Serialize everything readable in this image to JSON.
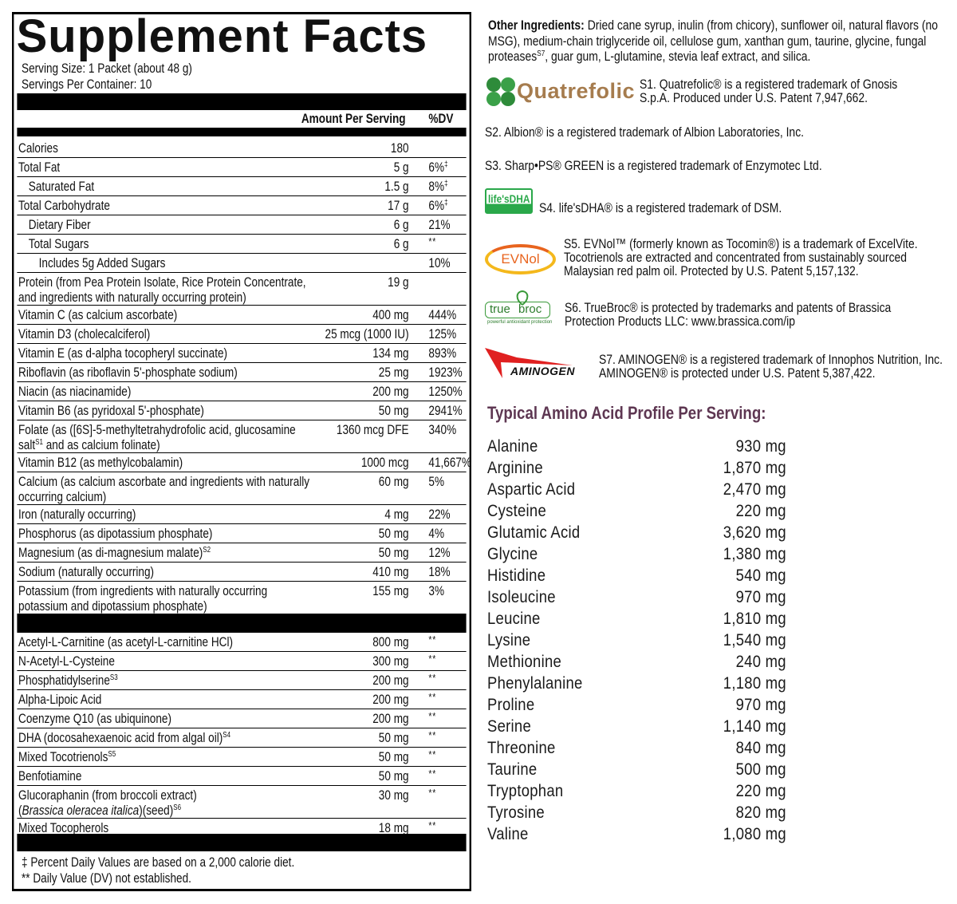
{
  "facts": {
    "title": "Supplement Facts",
    "serving_size": "Serving Size: 1 Packet (about 48 g)",
    "servings_per_container": "Servings Per Container: 10",
    "header_amount": "Amount Per Serving",
    "header_dv": "%DV",
    "rows": [
      {
        "name": "Calories",
        "amount": "180",
        "dv": ""
      },
      {
        "name": "Total Fat",
        "amount": "5 g",
        "dv": "6%",
        "dv_sup": "‡"
      },
      {
        "name": "Saturated Fat",
        "amount": "1.5 g",
        "dv": "8%",
        "dv_sup": "‡",
        "indent": 1
      },
      {
        "name": "Total Carbohydrate",
        "amount": "17 g",
        "dv": "6%",
        "dv_sup": "‡"
      },
      {
        "name": "Dietary Fiber",
        "amount": "6 g",
        "dv": "21%",
        "indent": 1
      },
      {
        "name": "Total Sugars",
        "amount": "6 g",
        "dv": "**",
        "indent": 1
      },
      {
        "name": "Includes 5g Added Sugars",
        "amount": "",
        "dv": "10%",
        "indent": 2
      },
      {
        "name": "Protein (from Pea Protein Isolate, Rice Protein Concentrate,",
        "name2": "and ingredients with naturally occurring protein)",
        "amount": "19 g",
        "dv": ""
      },
      {
        "name": "Vitamin C (as calcium ascorbate)",
        "amount": "400 mg",
        "dv": "444%"
      },
      {
        "name": "Vitamin D3 (cholecalciferol)",
        "amount": "25 mcg (1000 IU)",
        "dv": "125%"
      },
      {
        "name": "Vitamin E (as d-alpha tocopheryl succinate)",
        "amount": "134 mg",
        "dv": "893%"
      },
      {
        "name": "Riboflavin (as riboflavin 5'-phosphate sodium)",
        "amount": "25 mg",
        "dv": "1923%"
      },
      {
        "name": "Niacin (as niacinamide)",
        "amount": "200 mg",
        "dv": "1250%"
      },
      {
        "name": "Vitamin B6 (as pyridoxal 5'-phosphate)",
        "amount": "50 mg",
        "dv": "2941%"
      },
      {
        "name": "Folate (as ([6S]-5-methyltetrahydrofolic acid, glucosamine",
        "name2": "salt",
        "sup2": "S1",
        "name2b": " and as calcium folinate)",
        "amount": "1360 mcg DFE",
        "dv": "340%"
      },
      {
        "name": "Vitamin B12 (as methylcobalamin)",
        "amount": "1000 mcg",
        "dv": "41,667%"
      },
      {
        "name": "Calcium (as calcium ascorbate and ingredients with naturally",
        "name2": "occurring calcium)",
        "amount": "60 mg",
        "dv": "5%"
      },
      {
        "name": "Iron (naturally occurring)",
        "amount": "4 mg",
        "dv": "22%"
      },
      {
        "name": "Phosphorus (as dipotassium phosphate)",
        "amount": "50 mg",
        "dv": "4%"
      },
      {
        "name": "Magnesium (as di-magnesium malate)",
        "sup": "S2",
        "amount": "50 mg",
        "dv": "12%"
      },
      {
        "name": "Sodium (naturally occurring)",
        "amount": "410 mg",
        "dv": "18%"
      },
      {
        "name": "Potassium (from ingredients with naturally occurring",
        "name2": "potassium and dipotassium phosphate)",
        "amount": "155 mg",
        "dv": "3%"
      }
    ],
    "rows2": [
      {
        "name": "Acetyl-L-Carnitine (as acetyl-L-carnitine HCl)",
        "amount": "800 mg",
        "dv": "**"
      },
      {
        "name": "N-Acetyl-L-Cysteine",
        "amount": "300 mg",
        "dv": "**"
      },
      {
        "name": "Phosphatidylserine",
        "sup": "S3",
        "amount": "200 mg",
        "dv": "**"
      },
      {
        "name": "Alpha-Lipoic Acid",
        "amount": "200 mg",
        "dv": "**"
      },
      {
        "name": "Coenzyme Q10 (as ubiquinone)",
        "amount": "200 mg",
        "dv": "**"
      },
      {
        "name": "DHA (docosahexaenoic acid from algal oil)",
        "sup": "S4",
        "amount": "50 mg",
        "dv": "**"
      },
      {
        "name": "Mixed Tocotrienols",
        "sup": "S5",
        "amount": "50 mg",
        "dv": "**"
      },
      {
        "name": "Benfotiamine",
        "amount": "50 mg",
        "dv": "**"
      },
      {
        "name": "Glucoraphanin (from broccoli extract)",
        "name2": "(",
        "name2i": "Brassica oleracea italica",
        "name2b": ")(seed)",
        "sup2": "S6",
        "amount": "30 mg",
        "dv": "**"
      },
      {
        "name": "Mixed Tocopherols",
        "amount": "18 mg",
        "dv": "**"
      }
    ],
    "footnote1": "‡ Percent Daily Values are based on a 2,000 calorie diet.",
    "footnote2": "** Daily Value (DV) not established."
  },
  "other_ingredients": {
    "label": "Other Ingredients:",
    "text": " Dried cane syrup, inulin (from chicory), sunflower oil, natural flavors (no MSG), medium-chain triglyceride oil, cellulose gum, xanthan gum, taurine, glycine, fungal proteases",
    "sup": "S7",
    "text2": ", guar gum, L-glutamine, stevia leaf extract, and silica."
  },
  "trademarks": [
    {
      "logo": "Quatrefolic",
      "line1": "S1. Quatrefolic® is a registered trademark of Gnosis",
      "line2": "S.p.A. Produced under U.S. Patent 7,947,662."
    },
    {
      "line1": "S2. Albion® is a registered trademark of Albion Laboratories, Inc."
    },
    {
      "line1": "S3. Sharp•PS® GREEN is a registered trademark of Enzymotec Ltd."
    },
    {
      "logo": "life'sDHA",
      "line1": "S4. life'sDHA® is a registered trademark of DSM."
    },
    {
      "logo": "EVNol",
      "line1": "S5. EVNol™ (formerly known as Tocomin®) is a trademark of ExcelVite.",
      "line2": "Tocotrienols are extracted and concentrated from sustainably sourced",
      "line3": "Malaysian red palm oil. Protected by U.S. Patent 5,157,132."
    },
    {
      "logo": "true broc",
      "logo_tagline": "powerful antioxidant protection",
      "line1": "S6. TrueBroc® is protected by trademarks and patents of Brassica",
      "line2": "Protection Products LLC: www.brassica.com/ip"
    },
    {
      "logo": "AMINOGEN",
      "line1": "S7. AMINOGEN® is a registered trademark of Innophos Nutrition, Inc.",
      "line2": "AMINOGEN® is protected under U.S. Patent 5,387,422."
    }
  ],
  "amino": {
    "title": "Typical Amino Acid Profile Per Serving:",
    "title_color": "#5e3752",
    "items": [
      {
        "name": "Alanine",
        "value": "930 mg"
      },
      {
        "name": "Arginine",
        "value": "1,870 mg"
      },
      {
        "name": "Aspartic Acid",
        "value": "2,470 mg"
      },
      {
        "name": "Cysteine",
        "value": "220 mg"
      },
      {
        "name": "Glutamic Acid",
        "value": "3,620 mg"
      },
      {
        "name": "Glycine",
        "value": "1,380 mg"
      },
      {
        "name": "Histidine",
        "value": "540 mg"
      },
      {
        "name": "Isoleucine",
        "value": "970 mg"
      },
      {
        "name": "Leucine",
        "value": "1,810 mg"
      },
      {
        "name": "Lysine",
        "value": "1,540 mg"
      },
      {
        "name": "Methionine",
        "value": "240 mg"
      },
      {
        "name": "Phenylalanine",
        "value": "1,180 mg"
      },
      {
        "name": "Proline",
        "value": "970 mg"
      },
      {
        "name": "Serine",
        "value": "1,140 mg"
      },
      {
        "name": "Threonine",
        "value": "840 mg"
      },
      {
        "name": "Taurine",
        "value": "500 mg"
      },
      {
        "name": "Tryptophan",
        "value": "220 mg"
      },
      {
        "name": "Tyrosine",
        "value": "820 mg"
      },
      {
        "name": "Valine",
        "value": "1,080 mg"
      }
    ]
  }
}
